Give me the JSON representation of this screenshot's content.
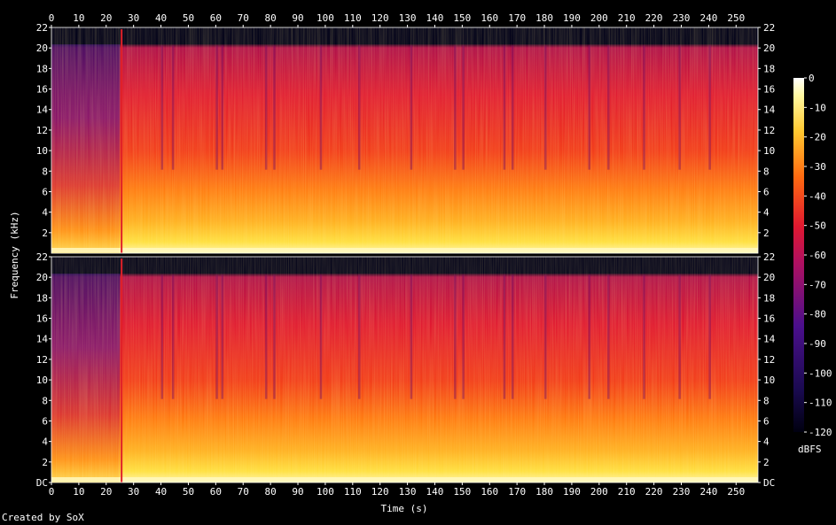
{
  "chart_data": {
    "type": "heatmap",
    "subtype": "spectrogram",
    "xlabel": "Time (s)",
    "ylabel": "Frequency (kHz)",
    "x_ticks": [
      0,
      10,
      20,
      30,
      40,
      50,
      60,
      70,
      80,
      90,
      100,
      110,
      120,
      130,
      140,
      150,
      160,
      170,
      180,
      190,
      200,
      210,
      220,
      230,
      240,
      250
    ],
    "xlim": [
      0,
      258
    ],
    "y_ticks_top": [
      "2",
      "4",
      "6",
      "8",
      "10",
      "12",
      "14",
      "16",
      "18",
      "20",
      "22"
    ],
    "y_ticks_bottom": [
      "DC",
      "2",
      "4",
      "6",
      "8",
      "10",
      "12",
      "14",
      "16",
      "18",
      "20",
      "22"
    ],
    "ylim": [
      0,
      22
    ],
    "channels": 2,
    "colorbar": {
      "label": "dBFS",
      "ticks": [
        "0",
        "-10",
        "-20",
        "-30",
        "-40",
        "-50",
        "-60",
        "-70",
        "-80",
        "-90",
        "-100",
        "-110",
        "-120"
      ],
      "range": [
        -120,
        0
      ]
    },
    "colors": {
      "background": "#000000",
      "low": "#000010",
      "purple": "#4b0f8c",
      "red": "#e01830",
      "orange": "#ff8800",
      "yellow": "#ffe640",
      "white": "#ffffff"
    }
  },
  "footer": {
    "credit": "Created by SoX"
  }
}
